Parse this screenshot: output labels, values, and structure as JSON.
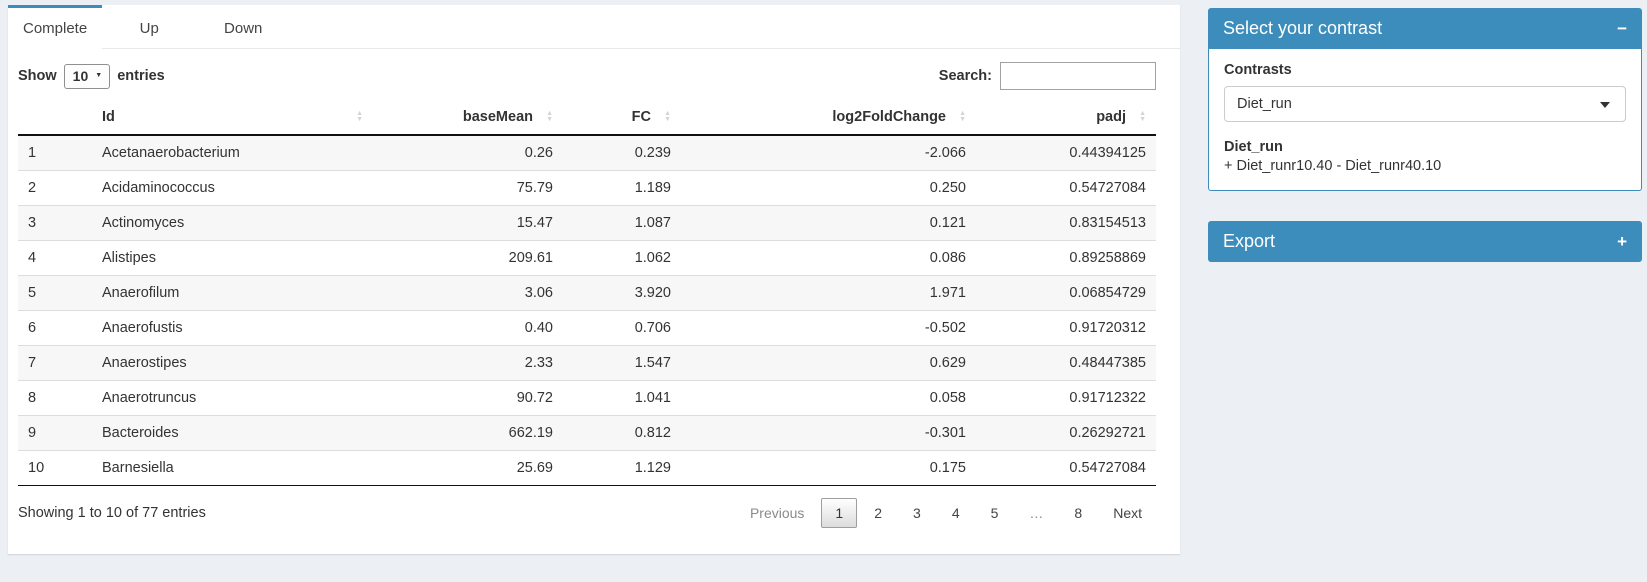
{
  "tabs": [
    {
      "label": "Complete",
      "active": true
    },
    {
      "label": "Up",
      "active": false
    },
    {
      "label": "Down",
      "active": false
    }
  ],
  "length_control": {
    "prefix": "Show",
    "value": "10",
    "suffix": "entries"
  },
  "search": {
    "label": "Search:",
    "value": ""
  },
  "icons": {
    "small_caret": "▼",
    "sort_asc": "▲",
    "sort_desc": "▼"
  },
  "table": {
    "columns": [
      {
        "label": "",
        "sortable": false,
        "align": "left"
      },
      {
        "label": "Id",
        "sortable": true,
        "align": "left"
      },
      {
        "label": "baseMean",
        "sortable": true,
        "align": "right"
      },
      {
        "label": "FC",
        "sortable": true,
        "align": "right"
      },
      {
        "label": "log2FoldChange",
        "sortable": true,
        "align": "right"
      },
      {
        "label": "padj",
        "sortable": true,
        "align": "right"
      }
    ],
    "rows": [
      [
        "1",
        "Acetanaerobacterium",
        "0.26",
        "0.239",
        "-2.066",
        "0.44394125"
      ],
      [
        "2",
        "Acidaminococcus",
        "75.79",
        "1.189",
        "0.250",
        "0.54727084"
      ],
      [
        "3",
        "Actinomyces",
        "15.47",
        "1.087",
        "0.121",
        "0.83154513"
      ],
      [
        "4",
        "Alistipes",
        "209.61",
        "1.062",
        "0.086",
        "0.89258869"
      ],
      [
        "5",
        "Anaerofilum",
        "3.06",
        "3.920",
        "1.971",
        "0.06854729"
      ],
      [
        "6",
        "Anaerofustis",
        "0.40",
        "0.706",
        "-0.502",
        "0.91720312"
      ],
      [
        "7",
        "Anaerostipes",
        "2.33",
        "1.547",
        "0.629",
        "0.48447385"
      ],
      [
        "8",
        "Anaerotruncus",
        "90.72",
        "1.041",
        "0.058",
        "0.91712322"
      ],
      [
        "9",
        "Bacteroides",
        "662.19",
        "0.812",
        "-0.301",
        "0.26292721"
      ],
      [
        "10",
        "Barnesiella",
        "25.69",
        "1.129",
        "0.175",
        "0.54727084"
      ]
    ],
    "info": "Showing 1 to 10 of 77 entries",
    "pagination": {
      "previous": "Previous",
      "pages": [
        "1",
        "2",
        "3",
        "4",
        "5",
        "…",
        "8"
      ],
      "current": "1",
      "next": "Next"
    }
  },
  "contrast_box": {
    "title": "Select your contrast",
    "collapse_icon": "−",
    "contrasts_label": "Contrasts",
    "selected_contrast": "Diet_run",
    "contrast_name": "Diet_run",
    "contrast_formula": "+ Diet_runr10.40 - Diet_runr40.10"
  },
  "export_box": {
    "title": "Export",
    "expand_icon": "+"
  },
  "colors": {
    "primary": "#3c8dbc",
    "page_bg": "#ecf0f5",
    "stripe": "#f7f7f7"
  }
}
